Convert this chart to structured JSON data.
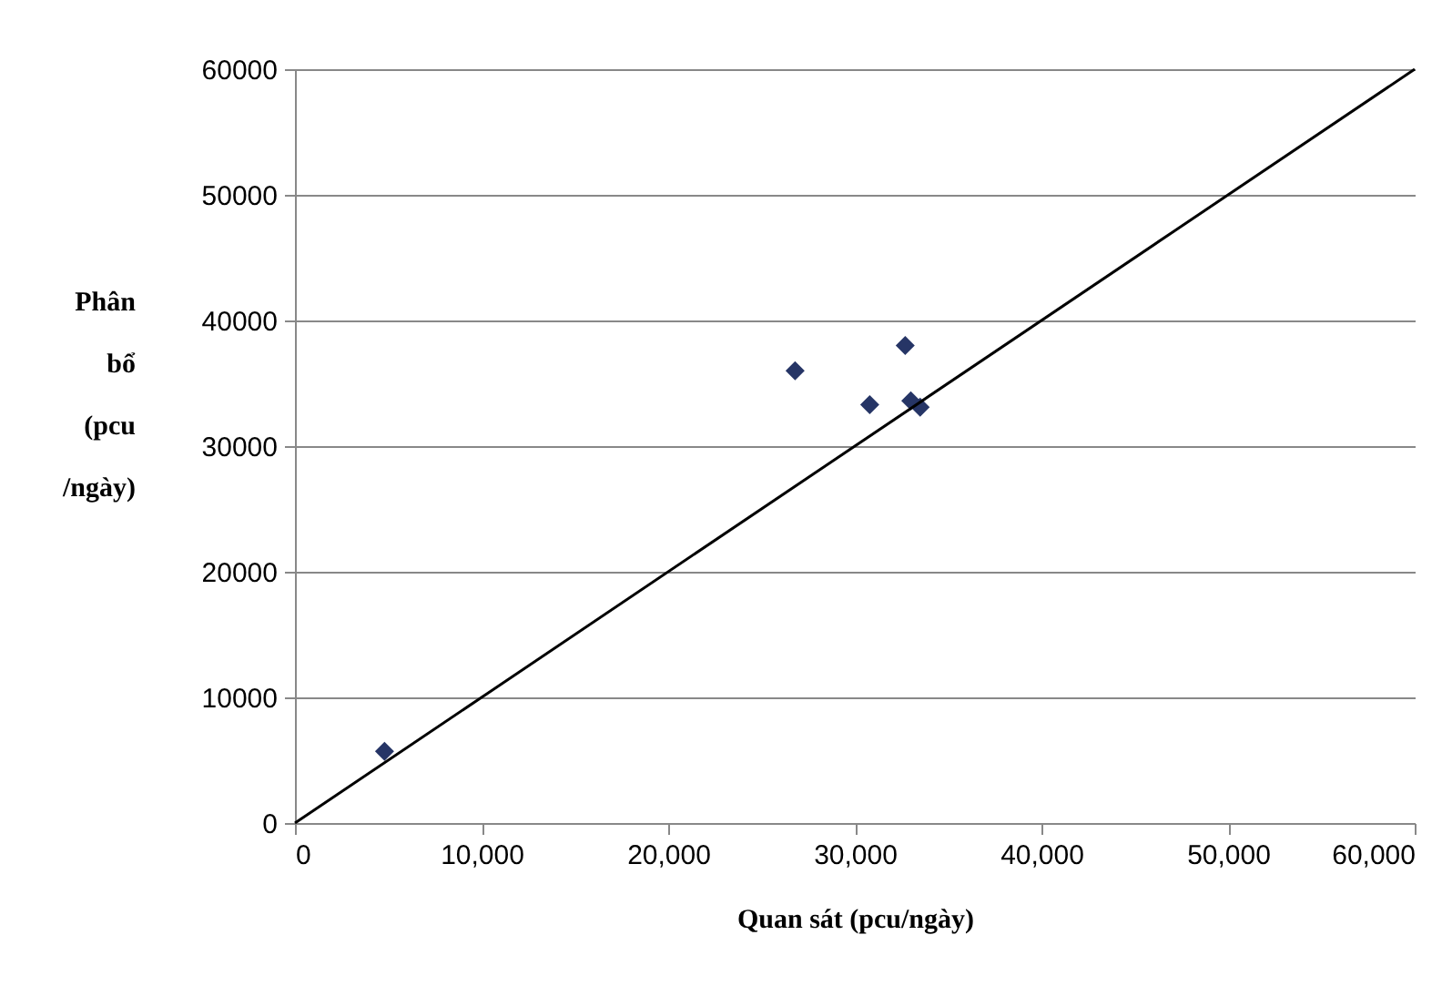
{
  "chart_data": {
    "type": "scatter",
    "xlabel": "Quan sát (pcu/ngày)",
    "ylabel": "Phân bổ (pcu /ngày)",
    "xlim": [
      0,
      60000
    ],
    "ylim": [
      0,
      60000
    ],
    "xticks": [
      0,
      {
        "value": 10000,
        "label": "10,000"
      },
      {
        "value": 20000,
        "label": "20,000"
      },
      {
        "value": 30000,
        "label": "30,000"
      },
      {
        "value": 40000,
        "label": "40,000"
      },
      {
        "value": 50000,
        "label": "50,000"
      },
      {
        "value": 60000,
        "label": "60,000"
      }
    ],
    "yticks": [
      0,
      10000,
      20000,
      30000,
      40000,
      50000,
      60000
    ],
    "grid": "y",
    "marker": "diamond",
    "series": [
      {
        "color": "#263566",
        "x": [
          4800,
          26800,
          32700,
          30800,
          33000,
          33500
        ],
        "values": [
          5700,
          36000,
          38000,
          33300,
          33600,
          33100
        ]
      },
      {
        "type": "line",
        "color": "#000000",
        "marker": "none",
        "x": [
          0,
          60000
        ],
        "values": [
          0,
          60000
        ]
      }
    ]
  }
}
